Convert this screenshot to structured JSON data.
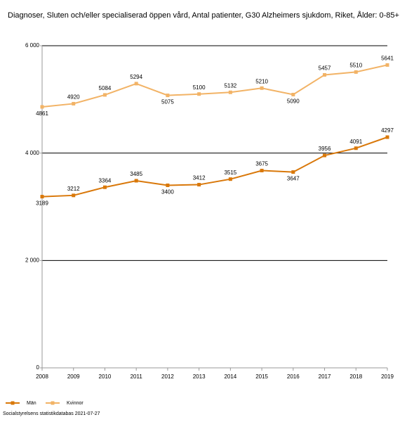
{
  "chart_data": {
    "type": "line",
    "title": "Diagnoser, Sluten och/eller specialiserad öppen vård, Antal patienter, G30 Alzheimers sjukdom, Riket, Ålder: 0-85+",
    "x": [
      2008,
      2009,
      2010,
      2011,
      2012,
      2013,
      2014,
      2015,
      2016,
      2017,
      2018,
      2019
    ],
    "series": [
      {
        "name": "Män",
        "color": "#d9780a",
        "values": [
          3189,
          3212,
          3364,
          3485,
          3400,
          3412,
          3515,
          3675,
          3647,
          3956,
          4091,
          4297
        ]
      },
      {
        "name": "Kvinnor",
        "color": "#f2b366",
        "values": [
          4861,
          4920,
          5084,
          5294,
          5075,
          5100,
          5132,
          5210,
          5090,
          5457,
          5510,
          5641
        ]
      }
    ],
    "xlim": [
      2008,
      2019
    ],
    "xticks": [
      2008,
      2009,
      2010,
      2011,
      2012,
      2013,
      2014,
      2015,
      2016,
      2017,
      2018,
      2019
    ],
    "ylim": [
      0,
      6000
    ],
    "yticks": [
      0,
      {
        "value": 2000,
        "label": "2 000"
      },
      {
        "value": 4000,
        "label": "4 000"
      },
      {
        "value": 6000,
        "label": "6 000"
      }
    ],
    "grid": true,
    "source": "Socialstyrelsens statistikdatabas 2021-07-27"
  }
}
